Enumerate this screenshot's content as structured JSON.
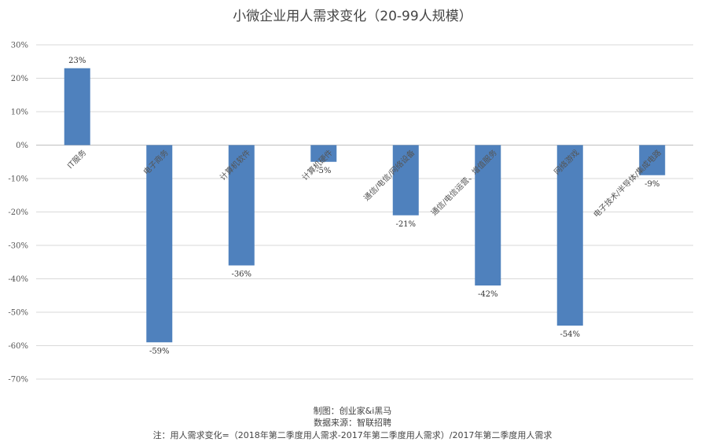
{
  "chart_data": {
    "type": "bar",
    "title": "小微企业用人需求变化（20-99人规模）",
    "categories": [
      "IT服务",
      "电子商务",
      "计算机软件",
      "计算机硬件",
      "通信/电信/网络设备",
      "通信/电信运营、增值服务",
      "网络游戏",
      "电子技术/半导体/集成电路"
    ],
    "values": [
      23,
      -59,
      -36,
      -5,
      -21,
      -42,
      -54,
      -9
    ],
    "value_labels": [
      "23%",
      "-59%",
      "-36%",
      "-5%",
      "-21%",
      "-42%",
      "-54%",
      "-9%"
    ],
    "ylim": [
      -70,
      30
    ],
    "yticks": [
      30,
      20,
      10,
      0,
      -10,
      -20,
      -30,
      -40,
      -50,
      -60,
      -70
    ],
    "ytick_labels": [
      "30%",
      "20%",
      "10%",
      "0%",
      "-10%",
      "-20%",
      "-30%",
      "-40%",
      "-50%",
      "-60%",
      "-70%"
    ],
    "grid": true,
    "bar_color": "#4f81bd"
  },
  "footer": {
    "credit": "制图：创业家&i黑马",
    "source": "数据来源：智联招聘",
    "note": "注：用人需求变化=（2018年第二季度用人需求-2017年第二季度用人需求）/2017年第二季度用人需求"
  }
}
